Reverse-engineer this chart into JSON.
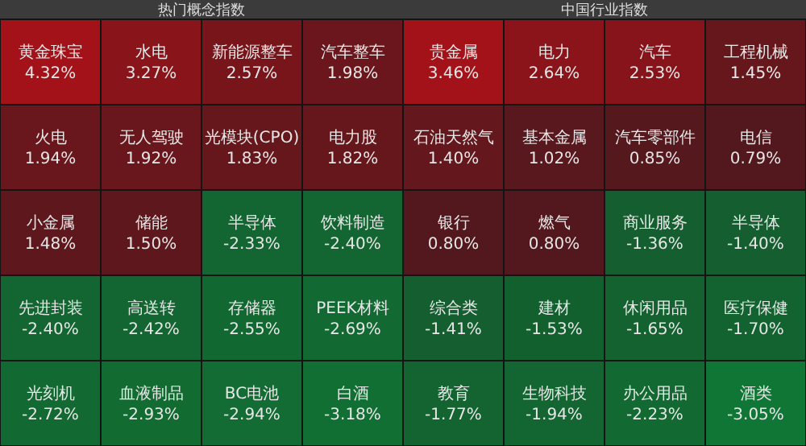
{
  "chart_data": [
    {
      "type": "other",
      "title": "热门概念指数",
      "categories": [
        "黄金珠宝",
        "水电",
        "新能源整车",
        "汽车整车",
        "火电",
        "无人驾驶",
        "光模块(CPO)",
        "电力股",
        "小金属",
        "储能",
        "半导体",
        "饮料制造",
        "先进封装",
        "高送转",
        "存储器",
        "PEEK材料",
        "光刻机",
        "血液制品",
        "BC电池",
        "白酒"
      ],
      "values": [
        4.32,
        3.27,
        2.57,
        1.98,
        1.94,
        1.92,
        1.83,
        1.82,
        1.48,
        1.5,
        -2.33,
        -2.4,
        -2.4,
        -2.42,
        -2.55,
        -2.69,
        -2.72,
        -2.93,
        -2.94,
        -3.18
      ],
      "value_labels": [
        "4.32%",
        "3.27%",
        "2.57%",
        "1.98%",
        "1.94%",
        "1.92%",
        "1.83%",
        "1.82%",
        "1.48%",
        "1.50%",
        "-2.33%",
        "-2.40%",
        "-2.40%",
        "-2.42%",
        "-2.55%",
        "-2.69%",
        "-2.72%",
        "-2.93%",
        "-2.94%",
        "-3.18%"
      ]
    },
    {
      "type": "other",
      "title": "中国行业指数",
      "categories": [
        "贵金属",
        "电力",
        "汽车",
        "工程机械",
        "石油天然气",
        "基本金属",
        "汽车零部件",
        "电信",
        "银行",
        "燃气",
        "商业服务",
        "半导体",
        "综合类",
        "建材",
        "休闲用品",
        "医疗保健",
        "教育",
        "生物科技",
        "办公用品",
        "酒类"
      ],
      "values": [
        3.46,
        2.64,
        2.53,
        1.45,
        1.4,
        1.02,
        0.85,
        0.79,
        0.8,
        0.8,
        -1.36,
        -1.4,
        -1.41,
        -1.53,
        -1.65,
        -1.7,
        -1.77,
        -1.94,
        -2.23,
        -3.05
      ],
      "value_labels": [
        "3.46%",
        "2.64%",
        "2.53%",
        "1.45%",
        "1.40%",
        "1.02%",
        "0.85%",
        "0.79%",
        "0.80%",
        "0.80%",
        "-1.36%",
        "-1.40%",
        "-1.41%",
        "-1.53%",
        "-1.65%",
        "-1.70%",
        "-1.77%",
        "-1.94%",
        "-2.23%",
        "-3.05%"
      ]
    }
  ]
}
